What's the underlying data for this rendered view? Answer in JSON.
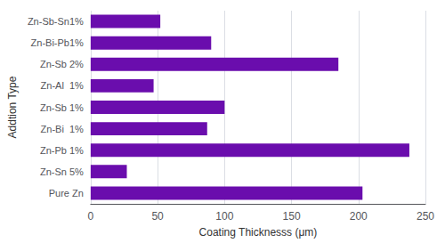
{
  "chart_data": {
    "type": "bar",
    "orientation": "horizontal",
    "categories": [
      "Zn-Sb-Sn1%",
      "Zn-Bi-Pb1%",
      "Zn-Sb 2%",
      "Zn-Al  1%",
      "Zn-Sb 1%",
      "Zn-Bi  1%",
      "Zn-Pb 1%",
      "Zn-Sn 5%",
      "Pure Zn"
    ],
    "values": [
      52,
      90,
      185,
      47,
      100,
      87,
      238,
      27,
      203
    ],
    "color": "#6a0dad",
    "xlabel": "Coating Thicknesss (μm)",
    "ylabel": "Addtion Type",
    "xlim": [
      0,
      250
    ],
    "xticks": [
      0,
      50,
      100,
      150,
      200,
      250
    ],
    "grid": true
  }
}
